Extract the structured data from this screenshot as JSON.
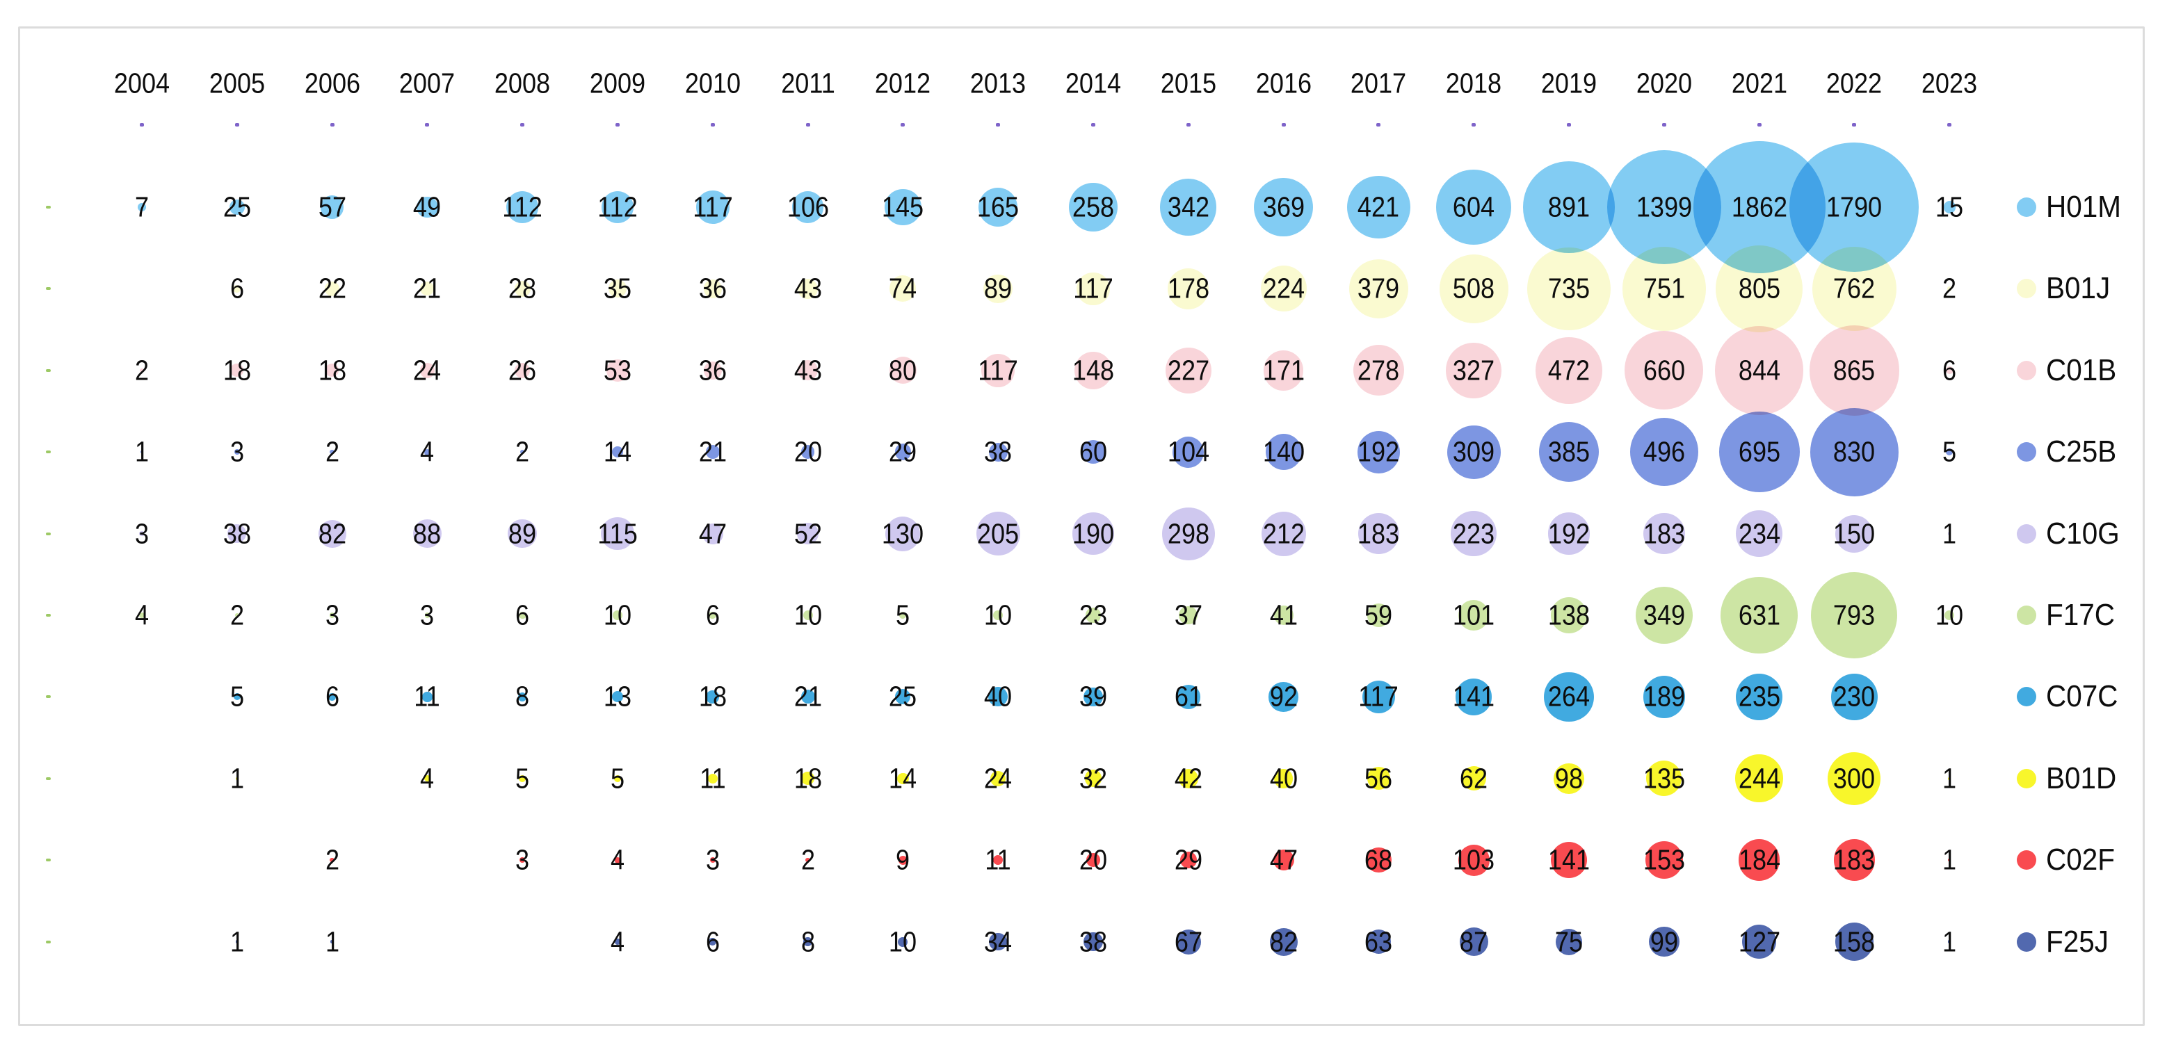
{
  "chart_data": {
    "type": "bubble",
    "title": "",
    "xlabel": "",
    "ylabel": "",
    "x_categories": [
      "2004",
      "2005",
      "2006",
      "2007",
      "2008",
      "2009",
      "2010",
      "2011",
      "2012",
      "2013",
      "2014",
      "2015",
      "2016",
      "2017",
      "2018",
      "2019",
      "2020",
      "2021",
      "2022",
      "2023"
    ],
    "legend_position": "right",
    "sizing": "bubble area proportional to cell value; value printed at bubble center",
    "series": [
      {
        "name": "H01M",
        "color": "#82CCF3",
        "values": [
          7,
          25,
          57,
          49,
          112,
          112,
          117,
          106,
          145,
          165,
          258,
          342,
          369,
          421,
          604,
          891,
          1399,
          1862,
          1790,
          15
        ]
      },
      {
        "name": "B01J",
        "color": "#FAFAD0",
        "values": [
          null,
          6,
          22,
          21,
          28,
          35,
          36,
          43,
          74,
          89,
          117,
          178,
          224,
          379,
          508,
          735,
          751,
          805,
          762,
          2
        ]
      },
      {
        "name": "C01B",
        "color": "#F9D5DA",
        "values": [
          2,
          18,
          18,
          24,
          26,
          53,
          36,
          43,
          80,
          117,
          148,
          227,
          171,
          278,
          327,
          472,
          660,
          844,
          865,
          6
        ]
      },
      {
        "name": "C25B",
        "color": "#7D96E2",
        "values": [
          1,
          3,
          2,
          4,
          2,
          14,
          21,
          20,
          29,
          38,
          60,
          104,
          140,
          192,
          309,
          385,
          496,
          695,
          830,
          5
        ]
      },
      {
        "name": "C10G",
        "color": "#CFC8EF",
        "values": [
          3,
          38,
          82,
          88,
          89,
          115,
          47,
          52,
          130,
          205,
          190,
          298,
          212,
          183,
          223,
          192,
          183,
          234,
          150,
          1
        ]
      },
      {
        "name": "F17C",
        "color": "#CDE5A4",
        "values": [
          4,
          2,
          3,
          3,
          6,
          10,
          6,
          10,
          5,
          10,
          23,
          37,
          41,
          59,
          101,
          138,
          349,
          631,
          793,
          10
        ]
      },
      {
        "name": "C07C",
        "color": "#41AAE0",
        "values": [
          null,
          5,
          6,
          11,
          8,
          13,
          18,
          21,
          25,
          40,
          39,
          61,
          92,
          117,
          141,
          264,
          189,
          235,
          230,
          null
        ]
      },
      {
        "name": "B01D",
        "color": "#F8F62B",
        "values": [
          null,
          1,
          null,
          4,
          5,
          5,
          11,
          18,
          14,
          24,
          32,
          42,
          40,
          56,
          62,
          98,
          135,
          244,
          300,
          1
        ]
      },
      {
        "name": "C02F",
        "color": "#F94B50",
        "values": [
          null,
          null,
          2,
          null,
          3,
          4,
          3,
          2,
          9,
          11,
          20,
          29,
          47,
          68,
          103,
          141,
          153,
          184,
          183,
          1
        ]
      },
      {
        "name": "F25J",
        "color": "#5269AF",
        "values": [
          null,
          1,
          1,
          null,
          null,
          4,
          6,
          8,
          10,
          34,
          38,
          67,
          82,
          63,
          87,
          75,
          99,
          127,
          158,
          1
        ]
      }
    ]
  },
  "decorations": {
    "frame_color": "#DCDCDC",
    "background_color": "#FFFFFF",
    "text_color": "#0D0D0D",
    "year_tick_color": "#7E63C9",
    "row_tick_color": "#9DC965"
  }
}
